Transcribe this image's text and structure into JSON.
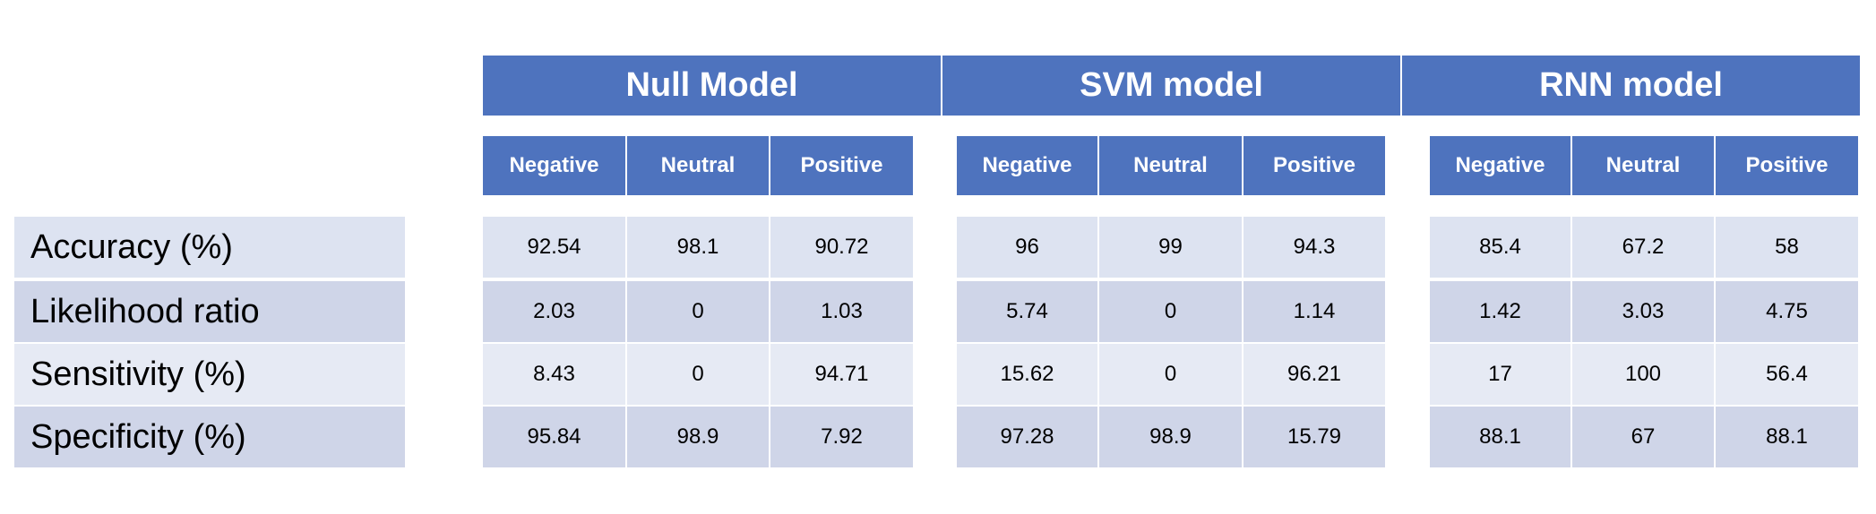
{
  "chart_data": {
    "type": "table",
    "models": [
      {
        "name": "Null Model",
        "columns": [
          "Negative",
          "Neutral",
          "Positive"
        ],
        "rows": [
          [
            "92.54",
            "98.1",
            "90.72"
          ],
          [
            "2.03",
            "0",
            "1.03"
          ],
          [
            "8.43",
            "0",
            "94.71"
          ],
          [
            "95.84",
            "98.9",
            "7.92"
          ]
        ]
      },
      {
        "name": "SVM model",
        "columns": [
          "Negative",
          "Neutral",
          "Positive"
        ],
        "rows": [
          [
            "96",
            "99",
            "94.3"
          ],
          [
            "5.74",
            "0",
            "1.14"
          ],
          [
            "15.62",
            "0",
            "96.21"
          ],
          [
            "97.28",
            "98.9",
            "15.79"
          ]
        ]
      },
      {
        "name": "RNN model",
        "columns": [
          "Negative",
          "Neutral",
          "Positive"
        ],
        "rows": [
          [
            "85.4",
            "67.2",
            "58"
          ],
          [
            "1.42",
            "3.03",
            "4.75"
          ],
          [
            "17",
            "100",
            "56.4"
          ],
          [
            "88.1",
            "67",
            "88.1"
          ]
        ]
      }
    ],
    "row_labels": [
      "Accuracy (%)",
      "Likelihood ratio",
      "Sensitivity (%)",
      "Specificity (%)"
    ]
  },
  "colors": {
    "header": "#4e73be",
    "row_light": "#dde3f1",
    "row_dark": "#cfd5e8"
  }
}
